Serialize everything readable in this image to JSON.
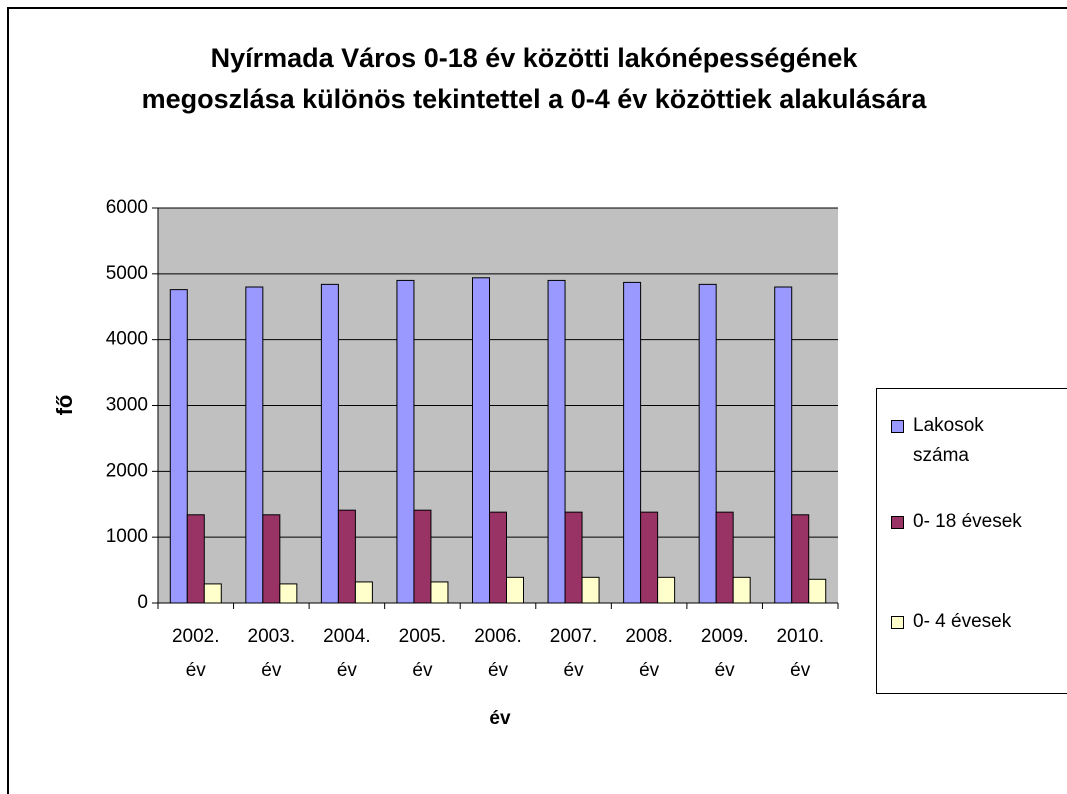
{
  "chart_data": {
    "type": "bar",
    "title": "Nyírmada Város 0-18 év közötti lakónépességének megoszlása különös tekintettel a 0-4 év közöttiek alakulására",
    "x_label": "év",
    "y_label": "fő",
    "categories": [
      "2002. év",
      "2003. év",
      "2004. év",
      "2005. év",
      "2006. év",
      "2007. év",
      "2008. év",
      "2009. év",
      "2010. év"
    ],
    "series": [
      {
        "name": "Lakosok száma",
        "color": "#9999ff",
        "values": [
          4760,
          4800,
          4840,
          4900,
          4940,
          4900,
          4870,
          4840,
          4800
        ]
      },
      {
        "name": "0- 18 évesek",
        "color": "#993366",
        "values": [
          1340,
          1340,
          1410,
          1410,
          1380,
          1380,
          1380,
          1380,
          1340
        ]
      },
      {
        "name": "0- 4 évesek",
        "color": "#ffffcc",
        "values": [
          290,
          290,
          320,
          320,
          390,
          390,
          390,
          390,
          360
        ]
      }
    ],
    "ylim": [
      0,
      6000
    ],
    "yticks": [
      0,
      1000,
      2000,
      3000,
      4000,
      5000,
      6000
    ],
    "grid": true,
    "legend": "right"
  }
}
